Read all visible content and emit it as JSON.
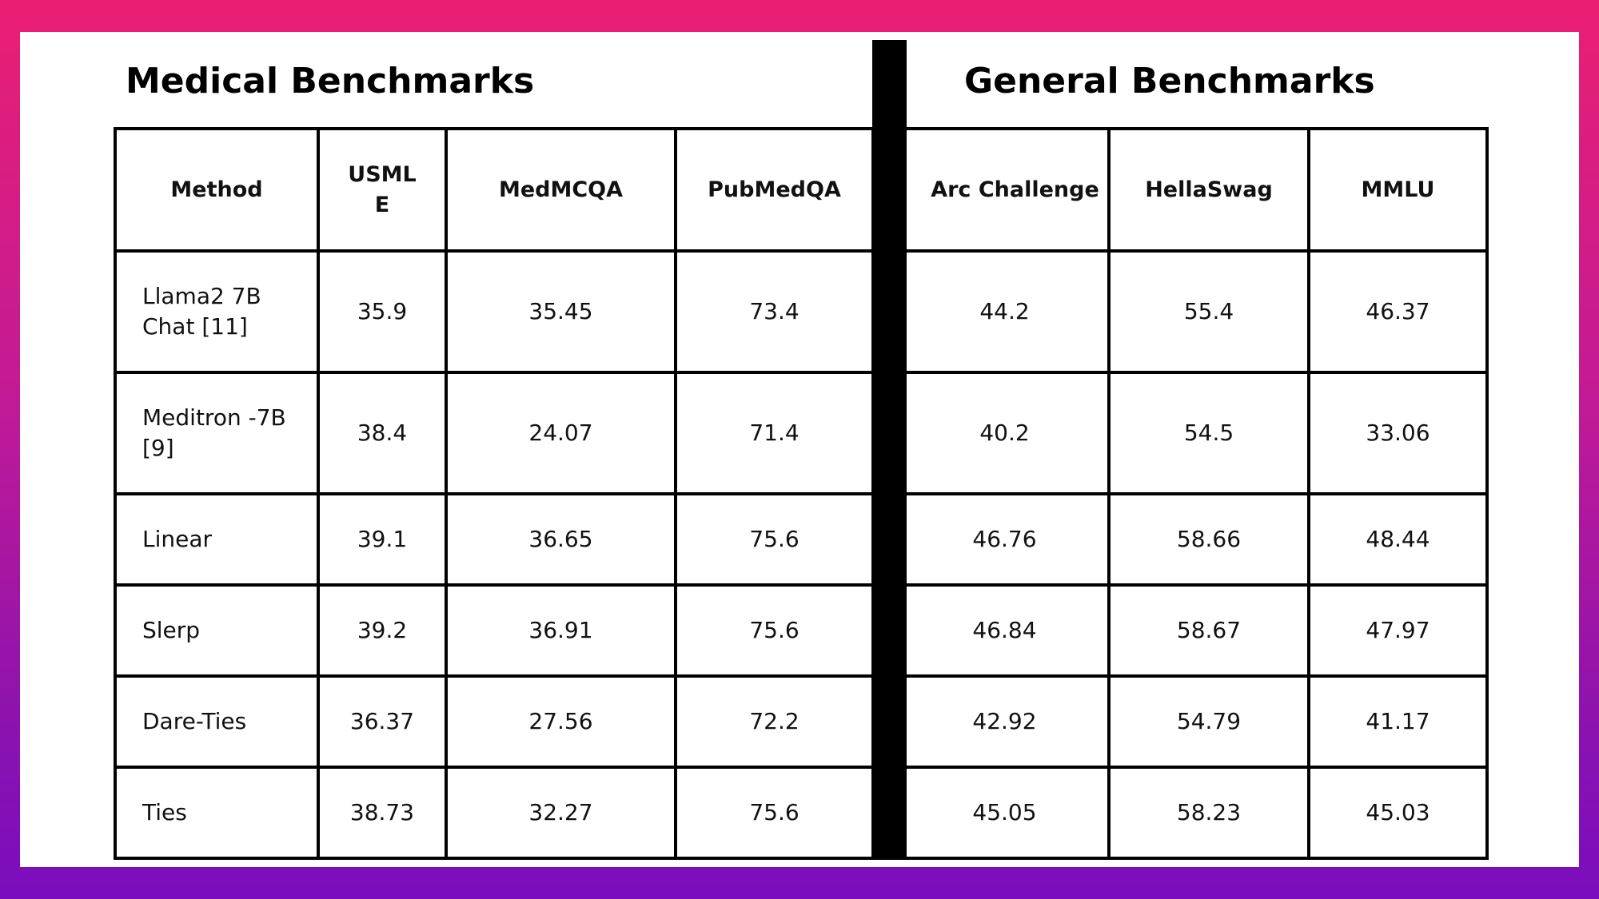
{
  "titles": {
    "medical": "Medical Benchmarks",
    "general": "General Benchmarks"
  },
  "colors": {
    "frame_gradient_top": "#ea1f73",
    "frame_gradient_bottom": "#7a0dbd",
    "divider": "#000000",
    "card": "#ffffff"
  },
  "chart_data": {
    "type": "table",
    "columns": [
      "Method",
      "USMLE",
      "MedMCQA",
      "PubMedQA",
      "Arc Challenge",
      "HellaSwag",
      "MMLU"
    ],
    "column_groups": [
      {
        "name": "Medical Benchmarks",
        "columns": [
          "USMLE",
          "MedMCQA",
          "PubMedQA"
        ]
      },
      {
        "name": "General Benchmarks",
        "columns": [
          "Arc Challenge",
          "HellaSwag",
          "MMLU"
        ]
      }
    ],
    "rows": [
      [
        "Llama2 7B Chat  [11]",
        "35.9",
        "35.45",
        "73.4",
        "44.2",
        "55.4",
        "46.37"
      ],
      [
        "Meditron -7B [9]",
        "38.4",
        "24.07",
        "71.4",
        "40.2",
        "54.5",
        "33.06"
      ],
      [
        "Linear",
        "39.1",
        "36.65",
        "75.6",
        "46.76",
        "58.66",
        "48.44"
      ],
      [
        "Slerp",
        "39.2",
        "36.91",
        "75.6",
        "46.84",
        "58.67",
        "47.97"
      ],
      [
        "Dare-Ties",
        "36.37",
        "27.56",
        "72.2",
        "42.92",
        "54.79",
        "41.17"
      ],
      [
        "Ties",
        "38.73",
        "32.27",
        "75.6",
        "45.05",
        "58.23",
        "45.03"
      ]
    ]
  }
}
